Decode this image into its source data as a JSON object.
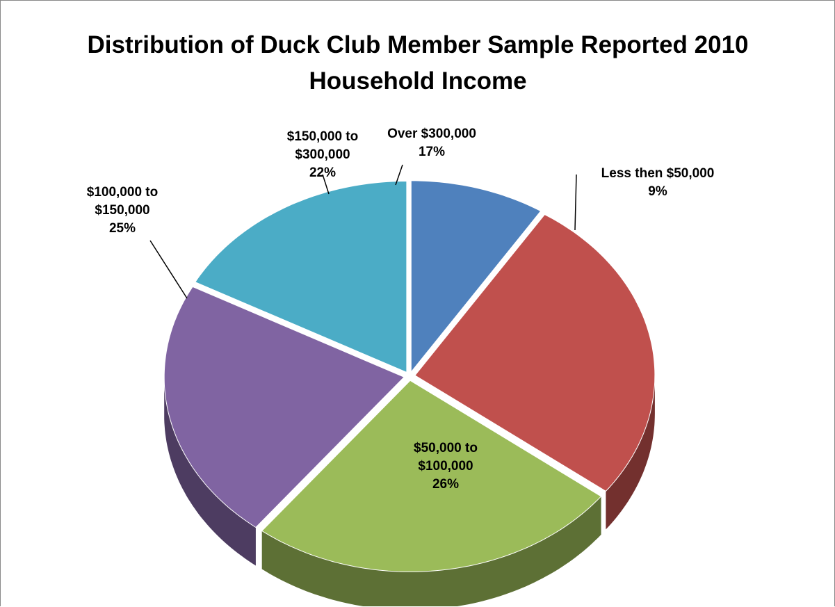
{
  "chart_data": {
    "type": "pie",
    "title": "Distribution of Duck Club Member Sample Reported 2010 Household Income",
    "categories": [
      "Less then $50,000",
      "$50,000 to $100,000",
      "$100,000 to $150,000",
      "$150,000 to $300,000",
      "Over $300,000"
    ],
    "values": [
      9,
      26,
      25,
      22,
      17
    ],
    "value_labels": [
      "9%",
      "26%",
      "25%",
      "22%",
      "17%"
    ],
    "colors": [
      "#4f81bd",
      "#c0504d",
      "#9bbb59",
      "#8064a2",
      "#4bacc6"
    ]
  }
}
